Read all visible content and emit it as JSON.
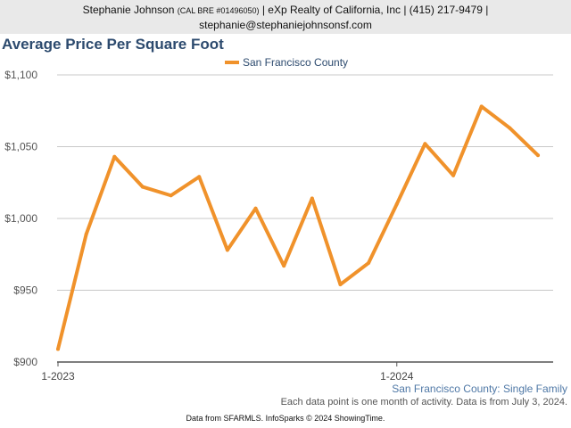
{
  "header": {
    "agent_name": "Stephanie Johnson",
    "license": "(CAL BRE #01496050)",
    "brokerage_phone": "| eXp Realty of California, Inc | (415) 217-9479 |",
    "email": "stephanie@stephaniejohnsonsf.com"
  },
  "footer": {
    "subtitle": "San Francisco County: Single Family",
    "note": "Each data point is one month of activity. Data is from July 3, 2024.",
    "source": "Data from SFARMLS. InfoSparks © 2024 ShowingTime."
  },
  "chart_data": {
    "type": "line",
    "title": "Average Price Per Square Foot",
    "xlabel": "",
    "ylabel": "",
    "x": [
      "2023-01",
      "2023-02",
      "2023-03",
      "2023-04",
      "2023-05",
      "2023-06",
      "2023-07",
      "2023-08",
      "2023-09",
      "2023-10",
      "2023-11",
      "2023-12",
      "2024-01",
      "2024-02",
      "2024-03",
      "2024-04",
      "2024-05",
      "2024-06"
    ],
    "x_tick_labels": [
      "1-2023",
      "1-2024"
    ],
    "series": [
      {
        "name": "San Francisco County",
        "color": "#f0922b",
        "values": [
          909,
          989,
          1043,
          1022,
          1016,
          1029,
          978,
          1007,
          967,
          1014,
          954,
          969,
          1010,
          1052,
          1030,
          1078,
          1063,
          1044
        ]
      }
    ],
    "ylim": [
      900,
      1100
    ],
    "y_ticks": [
      900,
      950,
      1000,
      1050,
      1100
    ],
    "y_tick_labels": [
      "$900",
      "$950",
      "$1,000",
      "$1,050",
      "$1,100"
    ],
    "grid": true,
    "legend_position": "top-center"
  }
}
